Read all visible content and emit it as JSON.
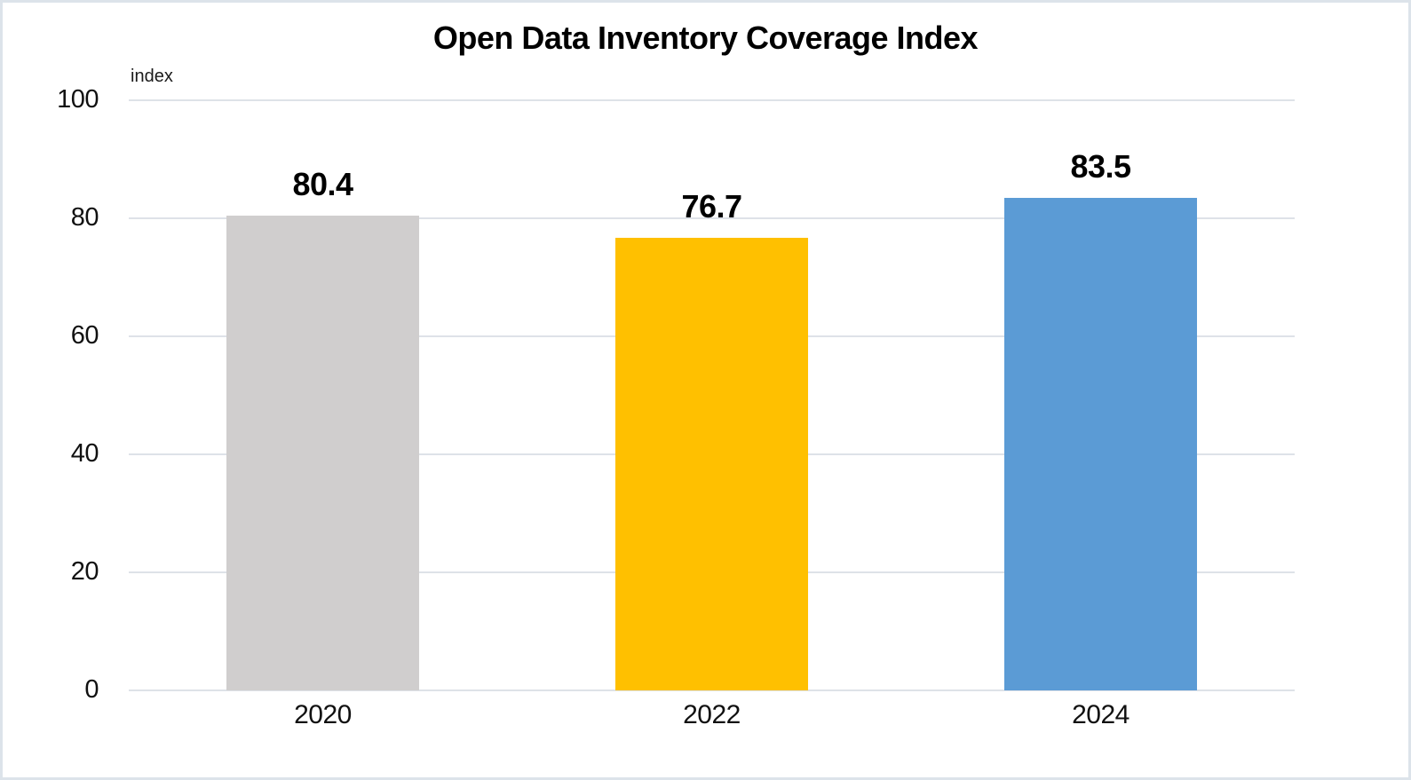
{
  "page": {
    "background": "#ffffff",
    "border_color": "#dce3ea"
  },
  "chart_data": {
    "type": "bar",
    "title": "Open Data Inventory Coverage Index",
    "ylabel": "index",
    "xlabel": "",
    "categories": [
      "2020",
      "2022",
      "2024"
    ],
    "values": [
      80.4,
      76.7,
      83.5
    ],
    "value_labels": [
      "80.4",
      "76.7",
      "83.5"
    ],
    "bar_colors": [
      "#d0cece",
      "#ffc000",
      "#5b9bd5"
    ],
    "ylim": [
      0,
      100
    ],
    "yticks": [
      0,
      20,
      40,
      60,
      80,
      100
    ],
    "grid": "horizontal",
    "gridline_color": "#dee2e8",
    "legend": "none"
  }
}
